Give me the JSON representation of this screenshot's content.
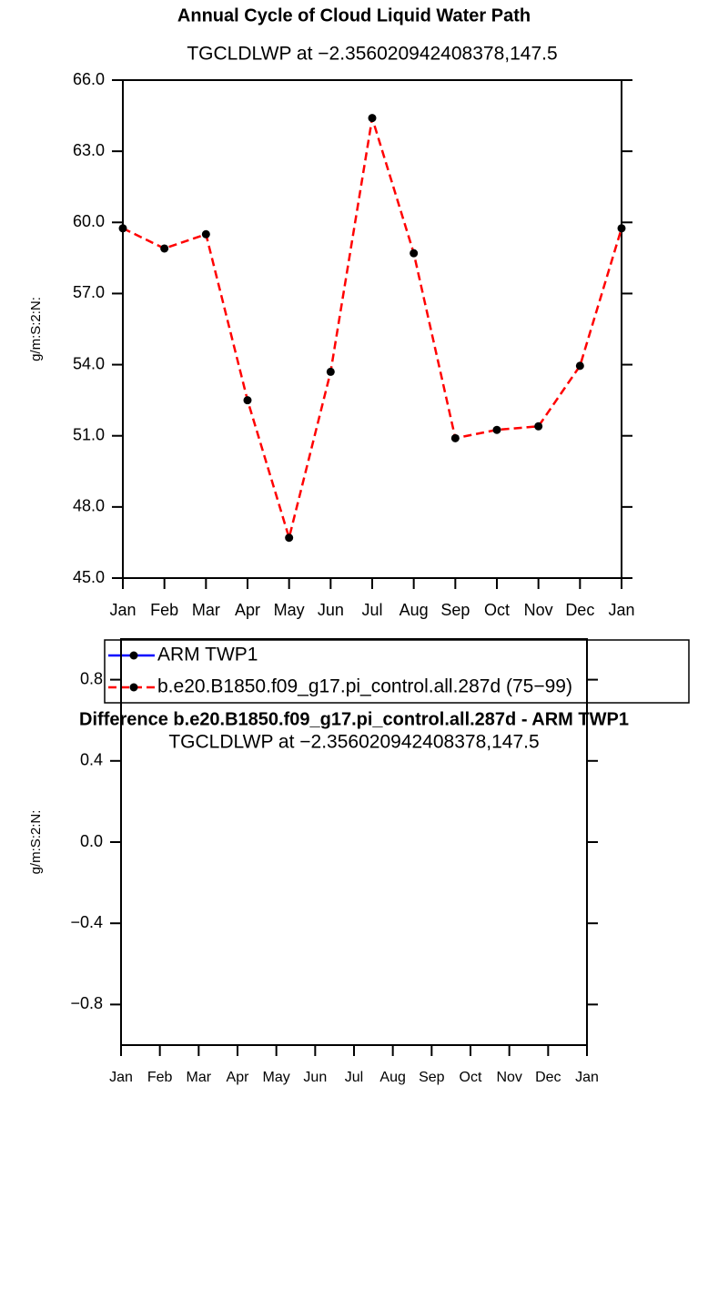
{
  "chart_data": [
    {
      "type": "line",
      "title": "Annual Cycle of Cloud Liquid Water Path",
      "subtitle": "TGCLDLWP at −2.356020942408378,147.5",
      "y_label": "g/m:S:2:N:",
      "categories": [
        "Jan",
        "Feb",
        "Mar",
        "Apr",
        "May",
        "Jun",
        "Jul",
        "Aug",
        "Sep",
        "Oct",
        "Nov",
        "Dec",
        "Jan"
      ],
      "series": [
        {
          "name": "ARM TWP1",
          "color": "#0000ff",
          "dashed": false,
          "values": [
            null,
            null,
            null,
            null,
            null,
            null,
            null,
            null,
            null,
            null,
            null,
            null,
            null
          ]
        },
        {
          "name": "b.e20.B1850.f09_g17.pi_control.all.287d (75−99)",
          "color": "#ff0000",
          "dashed": true,
          "values": [
            59.75,
            58.9,
            59.5,
            52.5,
            46.7,
            53.7,
            64.4,
            58.7,
            50.9,
            51.25,
            51.4,
            53.95,
            59.75
          ]
        }
      ],
      "ylim": [
        45,
        66
      ],
      "yticks": [
        {
          "value": 45,
          "label": "45.0"
        },
        {
          "value": 48,
          "label": "48.0"
        },
        {
          "value": 51,
          "label": "51.0"
        },
        {
          "value": 54,
          "label": "54.0"
        },
        {
          "value": 57,
          "label": "57.0"
        },
        {
          "value": 60,
          "label": "60.0"
        },
        {
          "value": 63,
          "label": "63.0"
        },
        {
          "value": 66,
          "label": "66.0"
        }
      ],
      "legend": "bottom"
    },
    {
      "type": "line",
      "title": "Difference b.e20.B1850.f09_g17.pi_control.all.287d - ARM TWP1",
      "subtitle": "TGCLDLWP at −2.356020942408378,147.5",
      "y_label": "g/m:S:2:N:",
      "categories": [
        "Jan",
        "Feb",
        "Mar",
        "Apr",
        "May",
        "Jun",
        "Jul",
        "Aug",
        "Sep",
        "Oct",
        "Nov",
        "Dec",
        "Jan"
      ],
      "ylim": [
        -1,
        1
      ],
      "yticks": [
        {
          "value": -0.8,
          "label": "−0.8"
        },
        {
          "value": -0.4,
          "label": "−0.4"
        },
        {
          "value": 0,
          "label": "0.0"
        },
        {
          "value": 0.4,
          "label": "0.4"
        },
        {
          "value": 0.8,
          "label": "0.8"
        }
      ]
    }
  ]
}
